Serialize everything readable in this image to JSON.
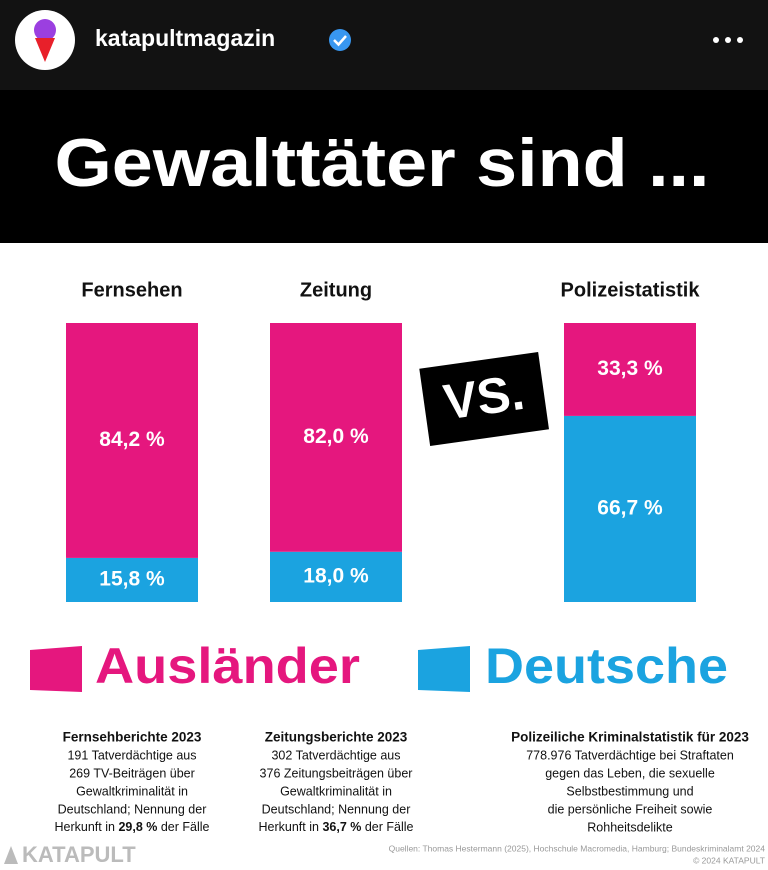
{
  "header": {
    "username": "katapultmagazin"
  },
  "chart_data": {
    "type": "stacked-bar",
    "title": "Gewalttäter sind ...",
    "annotation": "VS.",
    "categories": [
      "Fernsehen",
      "Zeitung",
      "Polizeistatistik"
    ],
    "series": [
      {
        "name": "Ausländer",
        "color": "#e5177e",
        "values": [
          84.2,
          82.0,
          33.3
        ],
        "value_labels": [
          "84,2 %",
          "82,0 %",
          "33,3 %"
        ]
      },
      {
        "name": "Deutsche",
        "color": "#1ba3e0",
        "values": [
          15.8,
          18.0,
          66.7
        ],
        "value_labels": [
          "15,8 %",
          "18,0 %",
          "66,7 %"
        ]
      }
    ]
  },
  "notes": [
    {
      "title": "Fernsehberichte 2023",
      "lines": [
        "191 Tatverdächtige aus",
        "269 TV-Beiträgen über",
        "Gewaltkriminalität in",
        "Deutschland; Nennung der"
      ],
      "emphasis": {
        "before": "Herkunft in ",
        "bold": "29,8 %",
        "after": " der Fälle"
      }
    },
    {
      "title": "Zeitungsberichte 2023",
      "lines": [
        "302 Tatverdächtige aus",
        "376 Zeitungsbeiträgen über",
        "Gewaltkriminalität in",
        "Deutschland; Nennung der"
      ],
      "emphasis": {
        "before": "Herkunft in ",
        "bold": "36,7 %",
        "after": " der Fälle"
      }
    },
    {
      "title": "Polizeiliche Kriminalstatistik für 2023",
      "lines": [
        "778.976 Tatverdächtige bei Straftaten",
        "gegen das Leben, die sexuelle",
        "Selbstbestimmung und",
        "die persönliche Freiheit sowie",
        "Rohheitsdelikte"
      ]
    }
  ],
  "footer": {
    "brand": "KATAPULT",
    "sources": "Quellen: Thomas Hestermann (2025), Hochschule Macromedia, Hamburg; Bundeskriminalamt 2024",
    "copyright": "© 2024 KATAPULT"
  }
}
